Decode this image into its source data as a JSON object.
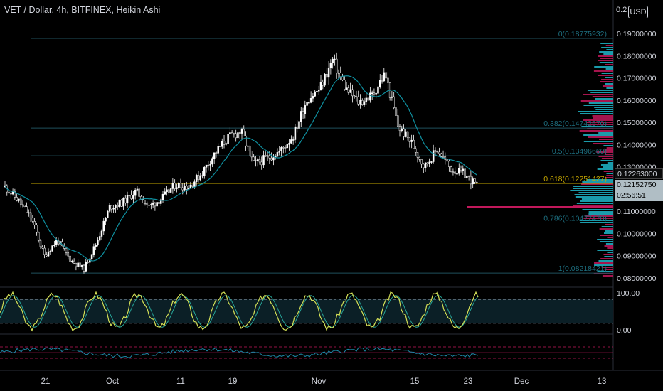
{
  "header": {
    "title": "VET / Dollar, 4h, BITFINEX, Heikin Ashi",
    "currency_button": "USD",
    "top_price_label": "0.2"
  },
  "price_tags": {
    "current_close": "0.12263000",
    "last_price": "0.12152750",
    "countdown": "02:56:51"
  },
  "colors": {
    "background": "#000000",
    "up_candle": "#ffffff",
    "down_candle": "#000000",
    "fib_line": "#1f4f5c",
    "fib_golden": "#c6a700",
    "fib_label": "#1d6f80",
    "moving_average": "#0f8f9f",
    "volume_profile_up": "#1fb6c9",
    "volume_profile_down": "#c2185b",
    "stoch_k": "#d4e157",
    "stoch_d": "#26a69a",
    "rsi_line": "#1e88a8",
    "rsi_bands": "#c2185b",
    "axis_text": "#d1d4dc"
  },
  "chart_data": {
    "type": "candlestick",
    "symbol": "VET / Dollar",
    "timeframe": "4h",
    "exchange": "BITFINEX",
    "candle_style": "Heikin Ashi",
    "ylim": [
      0.0775,
      0.2
    ],
    "y_ticks": [
      "0.19000000",
      "0.18000000",
      "0.17000000",
      "0.16000000",
      "0.15000000",
      "0.14000000",
      "0.13000000",
      "0.11000000",
      "0.10000000",
      "0.09000000",
      "0.08000000"
    ],
    "x_tick_labels": [
      "21",
      "Oct",
      "11",
      "19",
      "Nov",
      "15",
      "23",
      "Dec",
      "13"
    ],
    "fib_levels": [
      {
        "label": "0(0.18775932)",
        "value": 0.18775932
      },
      {
        "label": "0.382(0.14742570)",
        "value": 0.1474257
      },
      {
        "label": "0.5(0.13496660)",
        "value": 0.1349666
      },
      {
        "label": "0.618(0.12251427)",
        "value": 0.12251427
      },
      {
        "label": "0.786(0.10477470)",
        "value": 0.1047747
      },
      {
        "label": "1(0.08218421)",
        "value": 0.08218421
      }
    ],
    "price_series": [
      {
        "day": 0,
        "price": 0.121
      },
      {
        "day": 1,
        "price": 0.115
      },
      {
        "day": 2,
        "price": 0.107
      },
      {
        "day": 3,
        "price": 0.09
      },
      {
        "day": 4,
        "price": 0.097
      },
      {
        "day": 5,
        "price": 0.088
      },
      {
        "day": 6,
        "price": 0.084
      },
      {
        "day": 7,
        "price": 0.096
      },
      {
        "day": 8,
        "price": 0.112
      },
      {
        "day": 9,
        "price": 0.114
      },
      {
        "day": 10,
        "price": 0.119
      },
      {
        "day": 11,
        "price": 0.112
      },
      {
        "day": 12,
        "price": 0.116
      },
      {
        "day": 13,
        "price": 0.122
      },
      {
        "day": 14,
        "price": 0.121
      },
      {
        "day": 15,
        "price": 0.127
      },
      {
        "day": 16,
        "price": 0.136
      },
      {
        "day": 17,
        "price": 0.143
      },
      {
        "day": 18,
        "price": 0.146
      },
      {
        "day": 19,
        "price": 0.131
      },
      {
        "day": 20,
        "price": 0.134
      },
      {
        "day": 21,
        "price": 0.137
      },
      {
        "day": 22,
        "price": 0.144
      },
      {
        "day": 23,
        "price": 0.16
      },
      {
        "day": 24,
        "price": 0.165
      },
      {
        "day": 25,
        "price": 0.178
      },
      {
        "day": 26,
        "price": 0.165
      },
      {
        "day": 27,
        "price": 0.159
      },
      {
        "day": 28,
        "price": 0.162
      },
      {
        "day": 29,
        "price": 0.172
      },
      {
        "day": 30,
        "price": 0.148
      },
      {
        "day": 31,
        "price": 0.141
      },
      {
        "day": 32,
        "price": 0.13
      },
      {
        "day": 33,
        "price": 0.138
      },
      {
        "day": 34,
        "price": 0.129
      },
      {
        "day": 35,
        "price": 0.127
      },
      {
        "day": 36,
        "price": 0.1215
      }
    ],
    "oscillator_1": {
      "levels": [
        "100.00",
        "0.00"
      ],
      "upper_band": 80,
      "lower_band": 20
    },
    "oscillator_2": {
      "upper_band": 70,
      "lower_band": 30
    }
  }
}
